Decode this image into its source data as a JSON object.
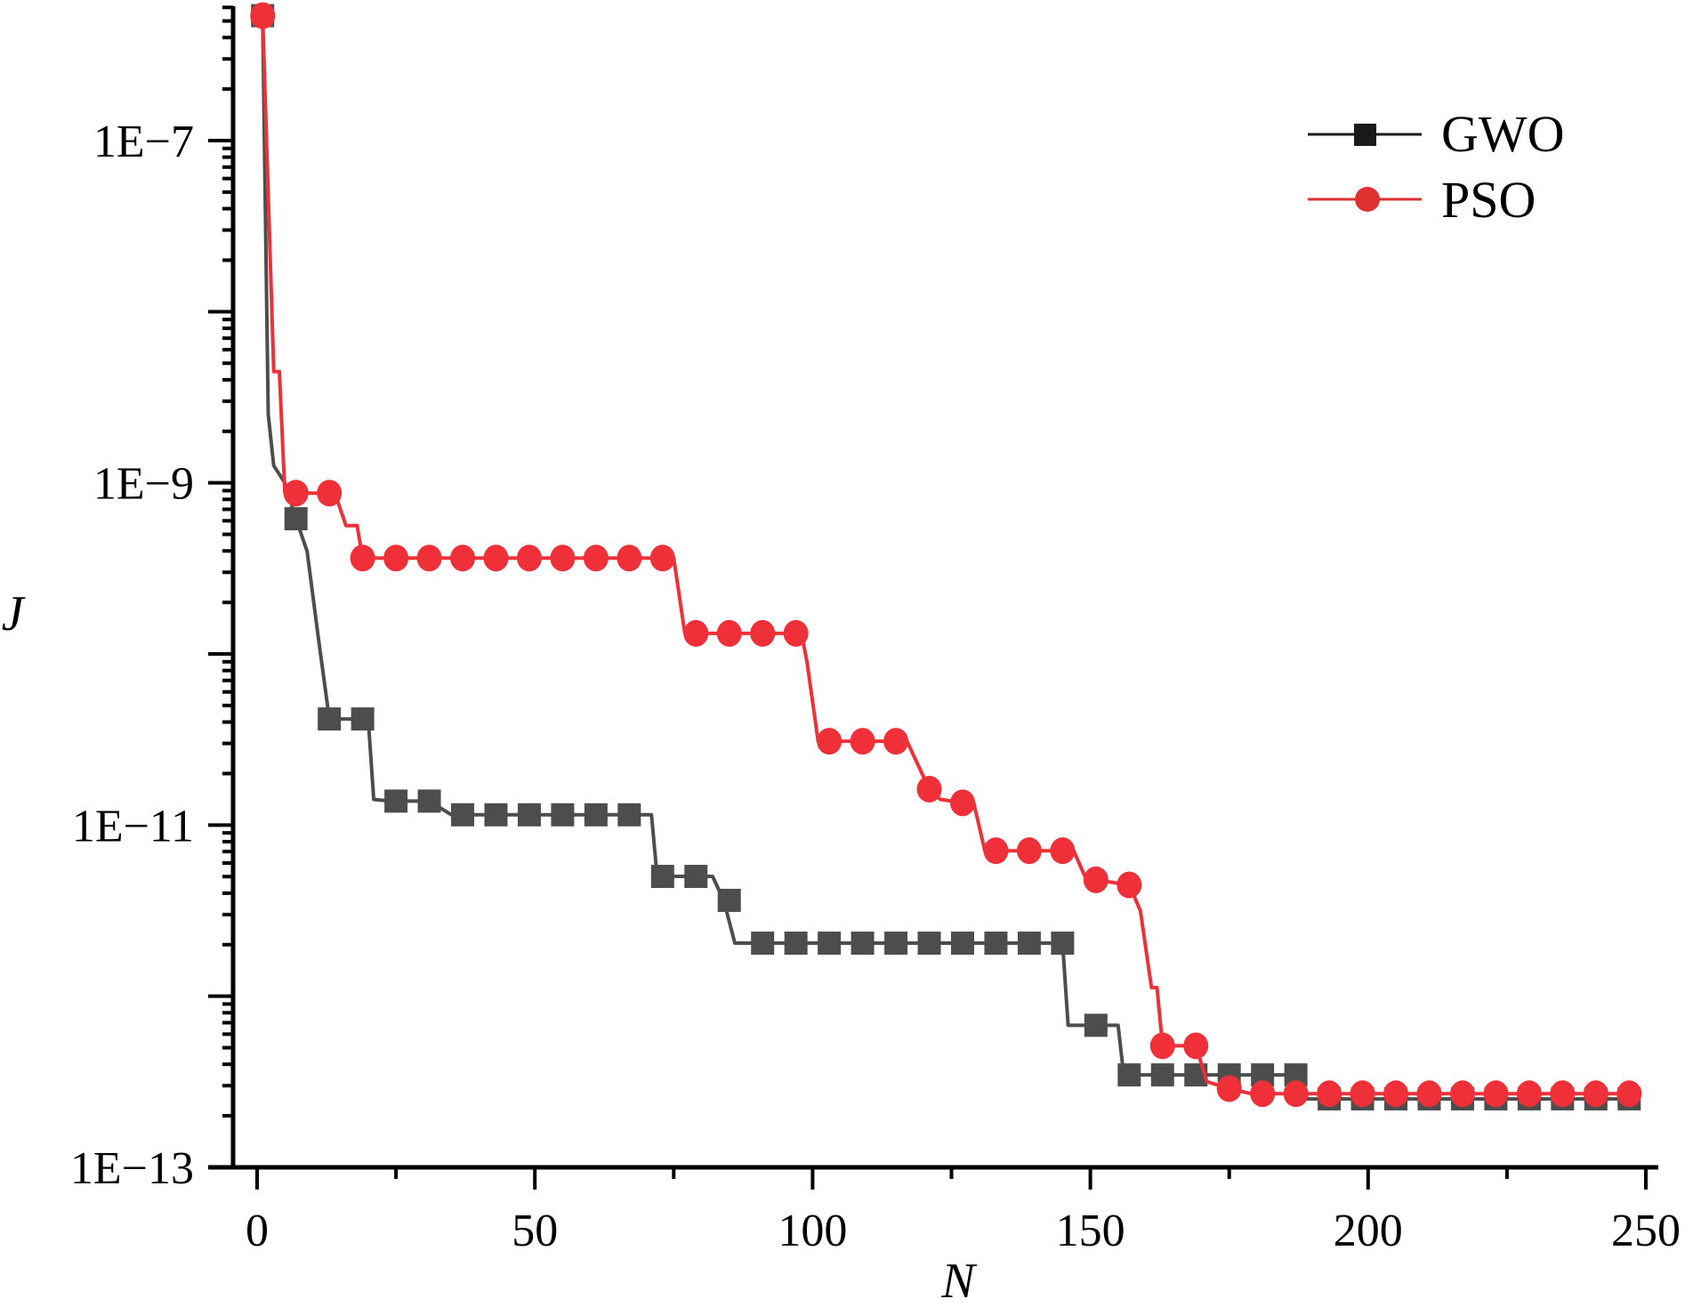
{
  "chart_data": {
    "type": "line",
    "title": "",
    "xlabel": "N",
    "ylabel": "J",
    "xlim": [
      -5,
      252
    ],
    "ylim_log10": [
      -13,
      -6.21
    ],
    "y_scale": "log",
    "x_ticks": [
      0,
      50,
      100,
      150,
      200,
      250
    ],
    "x_tick_labels": [
      "0",
      "50",
      "100",
      "150",
      "200",
      "250"
    ],
    "y_ticks_log10": [
      -7,
      -9,
      -11,
      -13
    ],
    "y_tick_labels": [
      "1E−7",
      "1E−9",
      "1E−11",
      "1E−13"
    ],
    "grid": false,
    "legend_position": "top-right",
    "marker_every": 6,
    "marker_start": 1,
    "series": [
      {
        "name": "GWO",
        "color": "#4d4d4d",
        "legend_marker_color": "#1a1a1a",
        "marker": "square",
        "steps_log10": [
          [
            1,
            -6.27
          ],
          [
            2,
            -8.6
          ],
          [
            3,
            -8.9
          ],
          [
            5,
            -9.0
          ],
          [
            7,
            -9.21
          ],
          [
            9,
            -9.4
          ],
          [
            11,
            -9.9
          ],
          [
            13,
            -10.38
          ],
          [
            20,
            -10.38
          ],
          [
            21,
            -10.85
          ],
          [
            24,
            -10.86
          ],
          [
            31,
            -10.86
          ],
          [
            35,
            -10.94
          ],
          [
            71,
            -10.94
          ],
          [
            72,
            -11.3
          ],
          [
            82,
            -11.3
          ],
          [
            84,
            -11.44
          ],
          [
            86,
            -11.69
          ],
          [
            145,
            -11.69
          ],
          [
            146,
            -12.17
          ],
          [
            155,
            -12.17
          ],
          [
            156,
            -12.46
          ],
          [
            188,
            -12.46
          ],
          [
            189,
            -12.6
          ],
          [
            248,
            -12.6
          ]
        ],
        "marker_values_log10": [
          -6.27,
          -9.21,
          -10.38,
          -10.38,
          -10.86,
          -10.86,
          -10.94,
          -10.94,
          -10.94,
          -10.94,
          -10.94,
          -10.94,
          -11.3,
          -11.3,
          -11.44,
          -11.69,
          -11.69,
          -11.69,
          -11.69,
          -11.69,
          -11.69,
          -11.69,
          -11.69,
          -11.69,
          -11.69,
          -12.17,
          -12.46,
          -12.46,
          -12.46,
          -12.46,
          -12.46,
          -12.46,
          -12.6,
          -12.6,
          -12.6,
          -12.6,
          -12.6,
          -12.6,
          -12.6,
          -12.6,
          -12.6,
          -12.6
        ]
      },
      {
        "name": "PSO",
        "color": "#f03038",
        "legend_marker_color": "#e03030",
        "marker": "circle",
        "steps_log10": [
          [
            1,
            -6.27
          ],
          [
            3,
            -8.35
          ],
          [
            4,
            -8.35
          ],
          [
            5,
            -9.06
          ],
          [
            14,
            -9.06
          ],
          [
            16,
            -9.25
          ],
          [
            18,
            -9.25
          ],
          [
            19,
            -9.44
          ],
          [
            75,
            -9.44
          ],
          [
            77,
            -9.88
          ],
          [
            98,
            -9.88
          ],
          [
            99,
            -10.05
          ],
          [
            101,
            -10.51
          ],
          [
            117,
            -10.51
          ],
          [
            119,
            -10.65
          ],
          [
            121,
            -10.79
          ],
          [
            123,
            -10.85
          ],
          [
            127,
            -10.87
          ],
          [
            129,
            -10.87
          ],
          [
            131,
            -11.15
          ],
          [
            147,
            -11.15
          ],
          [
            149,
            -11.3
          ],
          [
            151,
            -11.32
          ],
          [
            157,
            -11.35
          ],
          [
            159,
            -11.5
          ],
          [
            161,
            -11.95
          ],
          [
            162,
            -11.95
          ],
          [
            163,
            -12.29
          ],
          [
            169,
            -12.29
          ],
          [
            171,
            -12.5
          ],
          [
            175,
            -12.54
          ],
          [
            179,
            -12.57
          ],
          [
            248,
            -12.57
          ]
        ],
        "marker_values_log10": [
          -6.27,
          -9.06,
          -9.06,
          -9.44,
          -9.44,
          -9.44,
          -9.44,
          -9.44,
          -9.44,
          -9.44,
          -9.44,
          -9.44,
          -9.44,
          -9.88,
          -9.88,
          -9.88,
          -9.88,
          -10.51,
          -10.51,
          -10.51,
          -10.79,
          -10.87,
          -11.15,
          -11.15,
          -11.15,
          -11.32,
          -11.35,
          -12.29,
          -12.29,
          -12.54,
          -12.57,
          -12.57,
          -12.57,
          -12.57,
          -12.57,
          -12.57,
          -12.57,
          -12.57,
          -12.57,
          -12.57,
          -12.57,
          -12.57
        ]
      }
    ]
  }
}
